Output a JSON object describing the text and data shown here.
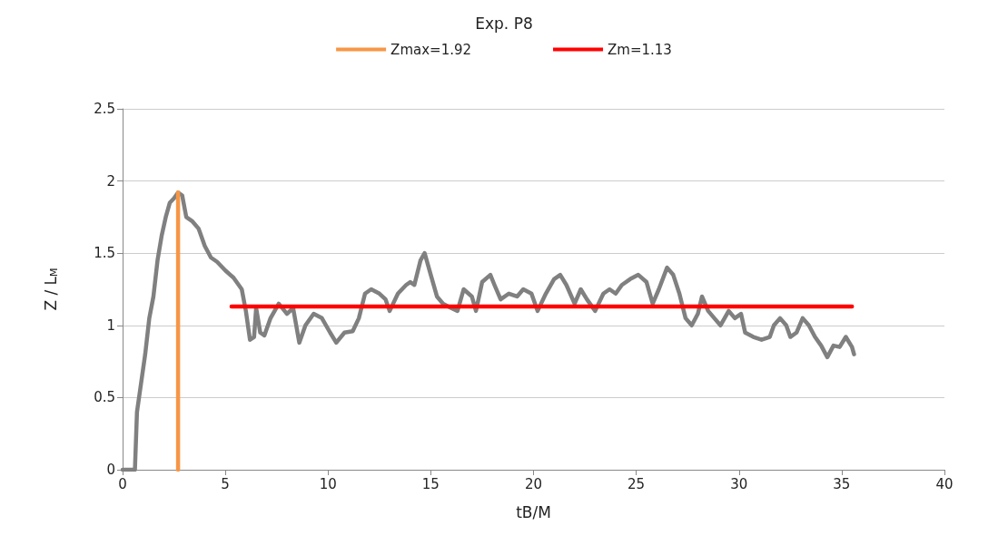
{
  "chart_data": {
    "type": "line",
    "title": "Exp. P8",
    "xlabel": "tB/M",
    "ylabel": "Z / L$_{M}$",
    "xlim": [
      0,
      40
    ],
    "xticks": [
      0,
      5,
      10,
      15,
      20,
      25,
      30,
      35,
      40
    ],
    "ylim": [
      0,
      2.5
    ],
    "yticks": [
      0,
      0.5,
      1,
      1.5,
      2,
      2.5
    ],
    "grid": "y",
    "legend": "top",
    "marker": "none",
    "line_style": "solid",
    "series": [
      {
        "color": "#808080",
        "x": [
          0,
          0.6,
          0.7,
          0.9,
          1.1,
          1.3,
          1.5,
          1.7,
          1.9,
          2.1,
          2.3,
          2.5,
          2.7,
          2.9,
          3.1,
          3.4,
          3.7,
          4.0,
          4.3,
          4.6,
          5.0,
          5.4,
          5.8,
          6.0,
          6.2,
          6.4,
          6.5,
          6.7,
          6.9,
          7.2,
          7.6,
          8.0,
          8.3,
          8.6,
          8.9,
          9.3,
          9.7,
          10.1,
          10.4,
          10.8,
          11.2,
          11.5,
          11.8,
          12.1,
          12.5,
          12.8,
          13.0,
          13.4,
          13.8,
          14.0,
          14.2,
          14.5,
          14.7,
          15.0,
          15.3,
          15.6,
          16.0,
          16.3,
          16.6,
          17.0,
          17.2,
          17.5,
          17.9,
          18.1,
          18.4,
          18.8,
          19.2,
          19.5,
          19.9,
          20.2,
          20.6,
          21.0,
          21.3,
          21.6,
          22.0,
          22.3,
          22.6,
          23.0,
          23.4,
          23.7,
          24.0,
          24.3,
          24.7,
          25.1,
          25.5,
          25.8,
          26.1,
          26.5,
          26.8,
          27.1,
          27.4,
          27.7,
          28.0,
          28.2,
          28.5,
          28.8,
          29.1,
          29.5,
          29.8,
          30.1,
          30.3,
          30.7,
          31.1,
          31.5,
          31.7,
          32.0,
          32.3,
          32.5,
          32.8,
          33.1,
          33.4,
          33.7,
          34.0,
          34.3,
          34.6,
          34.9,
          35.2,
          35.5,
          35.6
        ],
        "values": [
          0,
          0,
          0.4,
          0.6,
          0.8,
          1.05,
          1.2,
          1.45,
          1.62,
          1.75,
          1.85,
          1.88,
          1.92,
          1.9,
          1.75,
          1.72,
          1.67,
          1.55,
          1.47,
          1.44,
          1.38,
          1.33,
          1.25,
          1.1,
          0.9,
          0.92,
          1.12,
          0.95,
          0.93,
          1.05,
          1.15,
          1.08,
          1.12,
          0.88,
          1.0,
          1.08,
          1.05,
          0.95,
          0.88,
          0.95,
          0.96,
          1.05,
          1.22,
          1.25,
          1.22,
          1.18,
          1.1,
          1.22,
          1.28,
          1.3,
          1.28,
          1.45,
          1.5,
          1.35,
          1.2,
          1.15,
          1.12,
          1.1,
          1.25,
          1.2,
          1.1,
          1.3,
          1.35,
          1.28,
          1.18,
          1.22,
          1.2,
          1.25,
          1.22,
          1.1,
          1.22,
          1.32,
          1.35,
          1.28,
          1.15,
          1.25,
          1.18,
          1.1,
          1.22,
          1.25,
          1.22,
          1.28,
          1.32,
          1.35,
          1.3,
          1.15,
          1.25,
          1.4,
          1.35,
          1.22,
          1.05,
          1.0,
          1.08,
          1.2,
          1.1,
          1.05,
          1.0,
          1.1,
          1.05,
          1.08,
          0.95,
          0.92,
          0.9,
          0.92,
          1.0,
          1.05,
          1.0,
          0.92,
          0.95,
          1.05,
          1.0,
          0.92,
          0.86,
          0.78,
          0.86,
          0.85,
          0.92,
          0.85,
          0.8
        ]
      },
      {
        "name": "Zmax=1.92",
        "color": "#f79646",
        "x": [
          2.7,
          2.7
        ],
        "values": [
          0,
          1.92
        ]
      },
      {
        "name": "Zm=1.13",
        "color": "#ff0000",
        "x": [
          5.3,
          35.5
        ],
        "values": [
          1.13,
          1.13
        ]
      }
    ]
  }
}
